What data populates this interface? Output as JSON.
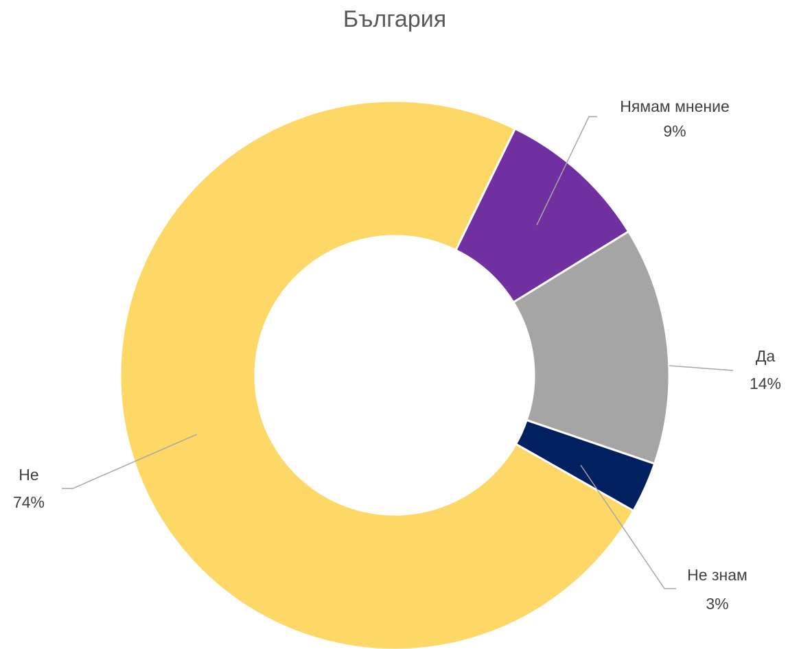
{
  "chart_data": {
    "type": "donut",
    "title": "България",
    "categories": [
      "Нямам мнение",
      "Да",
      "Не знам",
      "Не"
    ],
    "values": [
      9,
      14,
      3,
      74
    ],
    "value_labels": [
      "9%",
      "14%",
      "3%",
      "74%"
    ],
    "colors": [
      "#7030a0",
      "#a5a5a5",
      "#002060",
      "#fdd866"
    ]
  }
}
